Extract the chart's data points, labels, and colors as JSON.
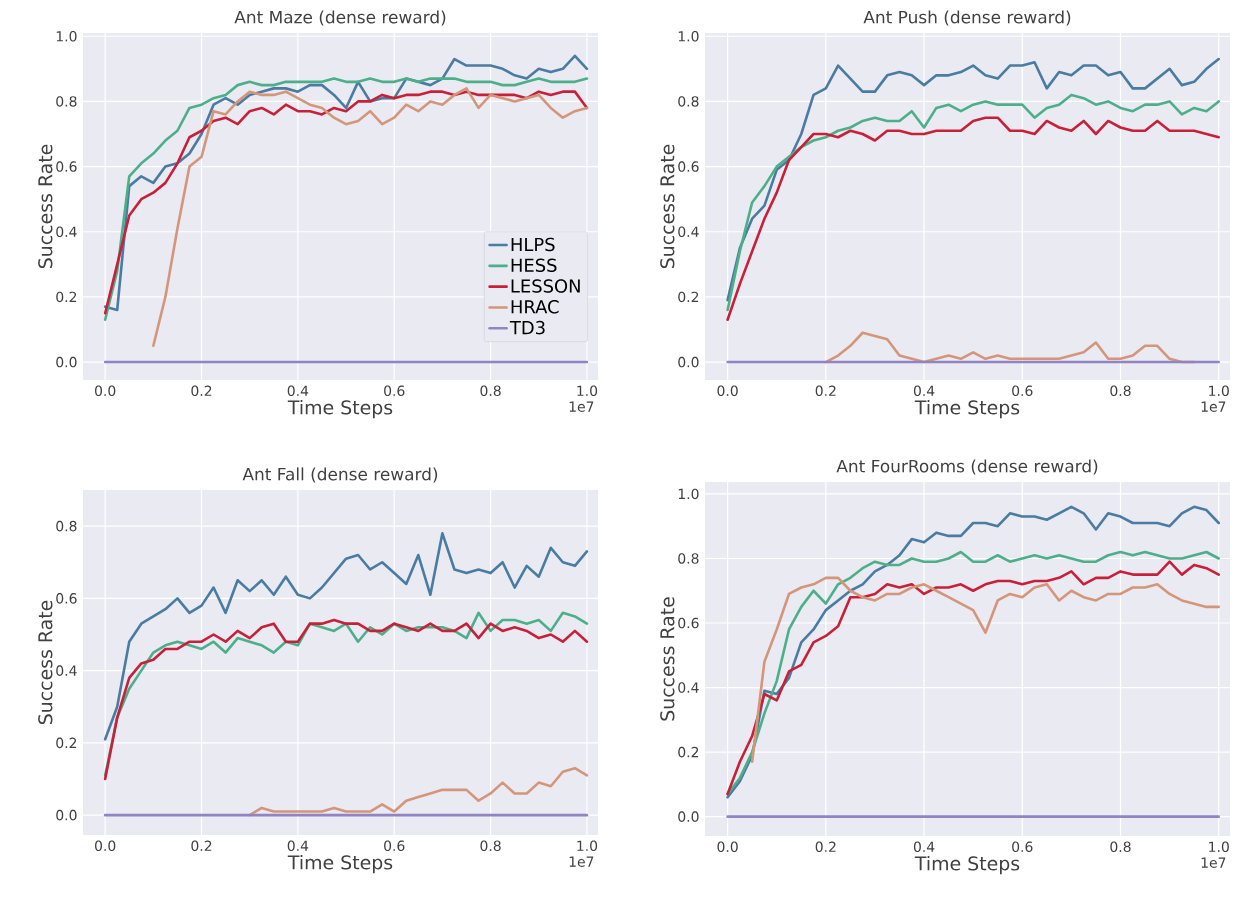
{
  "chart_data": [
    {
      "type": "line",
      "title": "Ant Maze (dense reward)",
      "xlabel": "Time Steps",
      "ylabel": "Success Rate",
      "annotations": [
        "1e7"
      ],
      "grid": true,
      "legend": "bottom right",
      "marker": "none",
      "line_style": "solid",
      "xlim": [
        -0.046,
        1.023
      ],
      "ylim": [
        -0.055,
        1.01
      ],
      "xticks": [
        {
          "value": 0,
          "label": "0.0"
        },
        {
          "value": 0.2,
          "label": "0.2"
        },
        {
          "value": 0.4,
          "label": "0.4"
        },
        {
          "value": 0.6,
          "label": "0.6"
        },
        {
          "value": 0.8,
          "label": "0.8"
        },
        {
          "value": 1,
          "label": "1.0"
        }
      ],
      "yticks": [
        {
          "value": 0,
          "label": "0.0"
        },
        {
          "value": 0.2,
          "label": "0.2"
        },
        {
          "value": 0.4,
          "label": "0.4"
        },
        {
          "value": 0.6,
          "label": "0.6"
        },
        {
          "value": 0.8,
          "label": "0.8"
        },
        {
          "value": 1,
          "label": "1.0"
        }
      ],
      "x": [
        0,
        0.025,
        0.05,
        0.075,
        0.1,
        0.125,
        0.15,
        0.175,
        0.2,
        0.225,
        0.25,
        0.275,
        0.3,
        0.325,
        0.35,
        0.375,
        0.4,
        0.425,
        0.45,
        0.475,
        0.5,
        0.525,
        0.55,
        0.575,
        0.6,
        0.625,
        0.65,
        0.675,
        0.7,
        0.725,
        0.75,
        0.775,
        0.8,
        0.825,
        0.85,
        0.875,
        0.9,
        0.925,
        0.95,
        0.975,
        1
      ],
      "series": [
        {
          "name": "HLPS",
          "color": "#4a7ba0",
          "values": [
            0.17,
            0.16,
            0.54,
            0.57,
            0.55,
            0.6,
            0.61,
            0.64,
            0.7,
            0.79,
            0.81,
            0.79,
            0.82,
            0.83,
            0.84,
            0.84,
            0.83,
            0.85,
            0.85,
            0.82,
            0.78,
            0.86,
            0.8,
            0.81,
            0.81,
            0.87,
            0.86,
            0.85,
            0.87,
            0.93,
            0.91,
            0.91,
            0.91,
            0.9,
            0.88,
            0.87,
            0.9,
            0.89,
            0.9,
            0.94,
            0.9
          ]
        },
        {
          "name": "HESS",
          "color": "#4daf8a",
          "values": [
            0.13,
            0.28,
            0.57,
            0.61,
            0.64,
            0.68,
            0.71,
            0.78,
            0.79,
            0.81,
            0.82,
            0.85,
            0.86,
            0.85,
            0.85,
            0.86,
            0.86,
            0.86,
            0.86,
            0.87,
            0.86,
            0.86,
            0.87,
            0.86,
            0.86,
            0.87,
            0.86,
            0.87,
            0.87,
            0.87,
            0.86,
            0.86,
            0.86,
            0.85,
            0.85,
            0.86,
            0.87,
            0.86,
            0.86,
            0.86,
            0.87
          ]
        },
        {
          "name": "LESSON",
          "color": "#c8203a",
          "values": [
            0.15,
            0.3,
            0.45,
            0.5,
            0.52,
            0.55,
            0.61,
            0.69,
            0.71,
            0.74,
            0.75,
            0.73,
            0.77,
            0.78,
            0.76,
            0.79,
            0.77,
            0.77,
            0.76,
            0.78,
            0.77,
            0.8,
            0.8,
            0.82,
            0.81,
            0.82,
            0.82,
            0.83,
            0.83,
            0.82,
            0.83,
            0.82,
            0.82,
            0.82,
            0.82,
            0.81,
            0.83,
            0.82,
            0.83,
            0.83,
            0.78
          ]
        },
        {
          "name": "HRAC",
          "color": "#d4967a",
          "values": [
            null,
            null,
            null,
            null,
            0.05,
            0.2,
            0.41,
            0.6,
            0.63,
            0.77,
            0.76,
            0.8,
            0.83,
            0.82,
            0.82,
            0.83,
            0.81,
            0.79,
            0.78,
            0.75,
            0.73,
            0.74,
            0.77,
            0.73,
            0.75,
            0.79,
            0.77,
            0.8,
            0.79,
            0.82,
            0.84,
            0.78,
            0.82,
            0.81,
            0.8,
            0.81,
            0.82,
            0.78,
            0.75,
            0.77,
            0.78
          ]
        },
        {
          "name": "TD3",
          "color": "#9183c4",
          "values": [
            0,
            0,
            0,
            0,
            0,
            0,
            0,
            0,
            0,
            0,
            0,
            0,
            0,
            0,
            0,
            0,
            0,
            0,
            0,
            0,
            0,
            0,
            0,
            0,
            0,
            0,
            0,
            0,
            0,
            0,
            0,
            0,
            0,
            0,
            0,
            0,
            0,
            0,
            0,
            0,
            0
          ]
        }
      ]
    },
    {
      "type": "line",
      "title": "Ant Push (dense reward)",
      "xlabel": "Time Steps",
      "ylabel": "Success Rate",
      "annotations": [
        "1e7"
      ],
      "grid": true,
      "marker": "none",
      "line_style": "solid",
      "xlim": [
        -0.046,
        1.023
      ],
      "ylim": [
        -0.055,
        1.01
      ],
      "xticks": [
        {
          "value": 0,
          "label": "0.0"
        },
        {
          "value": 0.2,
          "label": "0.2"
        },
        {
          "value": 0.4,
          "label": "0.4"
        },
        {
          "value": 0.6,
          "label": "0.6"
        },
        {
          "value": 0.8,
          "label": "0.8"
        },
        {
          "value": 1,
          "label": "1.0"
        }
      ],
      "yticks": [
        {
          "value": 0,
          "label": "0.0"
        },
        {
          "value": 0.2,
          "label": "0.2"
        },
        {
          "value": 0.4,
          "label": "0.4"
        },
        {
          "value": 0.6,
          "label": "0.6"
        },
        {
          "value": 0.8,
          "label": "0.8"
        },
        {
          "value": 1,
          "label": "1.0"
        }
      ],
      "x": [
        0,
        0.025,
        0.05,
        0.075,
        0.1,
        0.125,
        0.15,
        0.175,
        0.2,
        0.225,
        0.25,
        0.275,
        0.3,
        0.325,
        0.35,
        0.375,
        0.4,
        0.425,
        0.45,
        0.475,
        0.5,
        0.525,
        0.55,
        0.575,
        0.6,
        0.625,
        0.65,
        0.675,
        0.7,
        0.725,
        0.75,
        0.775,
        0.8,
        0.825,
        0.85,
        0.875,
        0.9,
        0.925,
        0.95,
        0.975,
        1
      ],
      "series": [
        {
          "color": "#4a7ba0",
          "values": [
            0.19,
            0.35,
            0.44,
            0.48,
            0.59,
            0.62,
            0.7,
            0.82,
            0.84,
            0.91,
            0.87,
            0.83,
            0.83,
            0.88,
            0.89,
            0.88,
            0.85,
            0.88,
            0.88,
            0.89,
            0.91,
            0.88,
            0.87,
            0.91,
            0.91,
            0.92,
            0.84,
            0.89,
            0.88,
            0.91,
            0.91,
            0.88,
            0.89,
            0.84,
            0.84,
            0.87,
            0.9,
            0.85,
            0.86,
            0.9,
            0.93
          ]
        },
        {
          "color": "#4daf8a",
          "values": [
            0.16,
            0.34,
            0.49,
            0.54,
            0.6,
            0.63,
            0.66,
            0.68,
            0.69,
            0.71,
            0.72,
            0.74,
            0.75,
            0.74,
            0.74,
            0.77,
            0.72,
            0.78,
            0.79,
            0.77,
            0.79,
            0.8,
            0.79,
            0.79,
            0.79,
            0.75,
            0.78,
            0.79,
            0.82,
            0.81,
            0.79,
            0.8,
            0.78,
            0.77,
            0.79,
            0.79,
            0.8,
            0.76,
            0.78,
            0.77,
            0.8
          ]
        },
        {
          "color": "#c8203a",
          "values": [
            0.13,
            0.24,
            0.34,
            0.44,
            0.52,
            0.62,
            0.66,
            0.7,
            0.7,
            0.69,
            0.71,
            0.7,
            0.68,
            0.71,
            0.71,
            0.7,
            0.7,
            0.71,
            0.71,
            0.71,
            0.74,
            0.75,
            0.75,
            0.71,
            0.71,
            0.7,
            0.74,
            0.72,
            0.71,
            0.74,
            0.7,
            0.74,
            0.72,
            0.71,
            0.71,
            0.74,
            0.71,
            0.71,
            0.71,
            0.7,
            0.69
          ]
        },
        {
          "color": "#d4967a",
          "values": [
            null,
            null,
            null,
            null,
            null,
            null,
            null,
            null,
            0,
            0.02,
            0.05,
            0.09,
            0.08,
            0.07,
            0.02,
            0.01,
            0,
            0.01,
            0.02,
            0.01,
            0.03,
            0.01,
            0.02,
            0.01,
            0.01,
            0.01,
            0.01,
            0.01,
            0.02,
            0.03,
            0.06,
            0.01,
            0.01,
            0.02,
            0.05,
            0.05,
            0.01,
            0,
            0,
            null,
            null
          ]
        },
        {
          "color": "#9183c4",
          "values": [
            0,
            0,
            0,
            0,
            0,
            0,
            0,
            0,
            0,
            0,
            0,
            0,
            0,
            0,
            0,
            0,
            0,
            0,
            0,
            0,
            0,
            0,
            0,
            0,
            0,
            0,
            0,
            0,
            0,
            0,
            0,
            0,
            0,
            0,
            0,
            0,
            0,
            0,
            0,
            0,
            0
          ]
        }
      ]
    },
    {
      "type": "line",
      "title": "Ant Fall (dense reward)",
      "xlabel": "Time Steps",
      "ylabel": "Success Rate",
      "annotations": [
        "1e7"
      ],
      "grid": true,
      "marker": "none",
      "line_style": "solid",
      "xlim": [
        -0.046,
        1.023
      ],
      "ylim": [
        -0.055,
        0.9
      ],
      "xticks": [
        {
          "value": 0,
          "label": "0.0"
        },
        {
          "value": 0.2,
          "label": "0.2"
        },
        {
          "value": 0.4,
          "label": "0.4"
        },
        {
          "value": 0.6,
          "label": "0.6"
        },
        {
          "value": 0.8,
          "label": "0.8"
        },
        {
          "value": 1,
          "label": "1.0"
        }
      ],
      "yticks": [
        {
          "value": 0,
          "label": "0.0"
        },
        {
          "value": 0.2,
          "label": "0.2"
        },
        {
          "value": 0.4,
          "label": "0.4"
        },
        {
          "value": 0.6,
          "label": "0.6"
        },
        {
          "value": 0.8,
          "label": "0.8"
        }
      ],
      "x": [
        0,
        0.025,
        0.05,
        0.075,
        0.1,
        0.125,
        0.15,
        0.175,
        0.2,
        0.225,
        0.25,
        0.275,
        0.3,
        0.325,
        0.35,
        0.375,
        0.4,
        0.425,
        0.45,
        0.475,
        0.5,
        0.525,
        0.55,
        0.575,
        0.6,
        0.625,
        0.65,
        0.675,
        0.7,
        0.725,
        0.75,
        0.775,
        0.8,
        0.825,
        0.85,
        0.875,
        0.9,
        0.925,
        0.95,
        0.975,
        1
      ],
      "series": [
        {
          "color": "#4a7ba0",
          "values": [
            0.21,
            0.3,
            0.48,
            0.53,
            0.55,
            0.57,
            0.6,
            0.56,
            0.58,
            0.63,
            0.56,
            0.65,
            0.62,
            0.65,
            0.61,
            0.66,
            0.61,
            0.6,
            0.63,
            0.67,
            0.71,
            0.72,
            0.68,
            0.7,
            0.67,
            0.64,
            0.72,
            0.61,
            0.78,
            0.68,
            0.67,
            0.68,
            0.67,
            0.7,
            0.63,
            0.69,
            0.66,
            0.74,
            0.7,
            0.69,
            0.73
          ]
        },
        {
          "color": "#4daf8a",
          "values": [
            0.11,
            0.27,
            0.35,
            0.4,
            0.45,
            0.47,
            0.48,
            0.47,
            0.46,
            0.48,
            0.45,
            0.49,
            0.48,
            0.47,
            0.45,
            0.48,
            0.47,
            0.53,
            0.52,
            0.51,
            0.53,
            0.48,
            0.52,
            0.5,
            0.53,
            0.51,
            0.52,
            0.52,
            0.52,
            0.51,
            0.49,
            0.56,
            0.51,
            0.54,
            0.54,
            0.53,
            0.54,
            0.51,
            0.56,
            0.55,
            0.53
          ]
        },
        {
          "color": "#c8203a",
          "values": [
            0.1,
            0.27,
            0.38,
            0.42,
            0.43,
            0.46,
            0.46,
            0.48,
            0.48,
            0.5,
            0.48,
            0.51,
            0.49,
            0.52,
            0.53,
            0.48,
            0.48,
            0.53,
            0.53,
            0.54,
            0.53,
            0.53,
            0.51,
            0.51,
            0.53,
            0.52,
            0.51,
            0.53,
            0.51,
            0.51,
            0.53,
            0.49,
            0.53,
            0.51,
            0.52,
            0.51,
            0.49,
            0.5,
            0.48,
            0.51,
            0.48
          ]
        },
        {
          "color": "#d4967a",
          "values": [
            null,
            null,
            null,
            null,
            null,
            null,
            null,
            null,
            null,
            null,
            null,
            null,
            0,
            0.02,
            0.01,
            0.01,
            0.01,
            0.01,
            0.01,
            0.02,
            0.01,
            0.01,
            0.01,
            0.03,
            0.01,
            0.04,
            0.05,
            0.06,
            0.07,
            0.07,
            0.07,
            0.04,
            0.06,
            0.09,
            0.06,
            0.06,
            0.09,
            0.08,
            0.12,
            0.13,
            0.11
          ]
        },
        {
          "color": "#9183c4",
          "values": [
            0,
            0,
            0,
            0,
            0,
            0,
            0,
            0,
            0,
            0,
            0,
            0,
            0,
            0,
            0,
            0,
            0,
            0,
            0,
            0,
            0,
            0,
            0,
            0,
            0,
            0,
            0,
            0,
            0,
            0,
            0,
            0,
            0,
            0,
            0,
            0,
            0,
            0,
            0,
            0,
            0
          ]
        }
      ]
    },
    {
      "type": "line",
      "title": "Ant FourRooms (dense reward)",
      "xlabel": "Time Steps",
      "ylabel": "Success Rate",
      "annotations": [
        "1e7"
      ],
      "grid": true,
      "marker": "none",
      "line_style": "solid",
      "xlim": [
        -0.046,
        1.023
      ],
      "ylim": [
        -0.06,
        1.037
      ],
      "xticks": [
        {
          "value": 0,
          "label": "0.0"
        },
        {
          "value": 0.2,
          "label": "0.2"
        },
        {
          "value": 0.4,
          "label": "0.4"
        },
        {
          "value": 0.6,
          "label": "0.6"
        },
        {
          "value": 0.8,
          "label": "0.8"
        },
        {
          "value": 1,
          "label": "1.0"
        }
      ],
      "yticks": [
        {
          "value": 0,
          "label": "0.0"
        },
        {
          "value": 0.2,
          "label": "0.2"
        },
        {
          "value": 0.4,
          "label": "0.4"
        },
        {
          "value": 0.6,
          "label": "0.6"
        },
        {
          "value": 0.8,
          "label": "0.8"
        },
        {
          "value": 1,
          "label": "1.0"
        }
      ],
      "x": [
        0,
        0.025,
        0.05,
        0.075,
        0.1,
        0.125,
        0.15,
        0.175,
        0.2,
        0.225,
        0.25,
        0.275,
        0.3,
        0.325,
        0.35,
        0.375,
        0.4,
        0.425,
        0.45,
        0.475,
        0.5,
        0.525,
        0.55,
        0.575,
        0.6,
        0.625,
        0.65,
        0.675,
        0.7,
        0.725,
        0.75,
        0.775,
        0.8,
        0.825,
        0.85,
        0.875,
        0.9,
        0.925,
        0.95,
        0.975,
        1
      ],
      "series": [
        {
          "color": "#4a7ba0",
          "values": [
            0.06,
            0.11,
            0.19,
            0.39,
            0.38,
            0.43,
            0.54,
            0.58,
            0.64,
            0.67,
            0.7,
            0.72,
            0.76,
            0.78,
            0.81,
            0.86,
            0.85,
            0.88,
            0.87,
            0.87,
            0.91,
            0.91,
            0.9,
            0.94,
            0.93,
            0.93,
            0.92,
            0.94,
            0.96,
            0.94,
            0.89,
            0.94,
            0.93,
            0.91,
            0.91,
            0.91,
            0.9,
            0.94,
            0.96,
            0.95,
            0.91
          ]
        },
        {
          "color": "#4daf8a",
          "values": [
            0.07,
            0.12,
            0.2,
            0.32,
            0.42,
            0.58,
            0.65,
            0.7,
            0.66,
            0.72,
            0.74,
            0.77,
            0.79,
            0.78,
            0.78,
            0.8,
            0.79,
            0.79,
            0.8,
            0.82,
            0.79,
            0.79,
            0.81,
            0.79,
            0.8,
            0.81,
            0.8,
            0.81,
            0.8,
            0.79,
            0.79,
            0.81,
            0.82,
            0.81,
            0.82,
            0.81,
            0.8,
            0.8,
            0.81,
            0.82,
            0.8
          ]
        },
        {
          "color": "#c8203a",
          "values": [
            0.07,
            0.17,
            0.25,
            0.38,
            0.36,
            0.45,
            0.47,
            0.54,
            0.56,
            0.59,
            0.68,
            0.68,
            0.69,
            0.72,
            0.71,
            0.72,
            0.69,
            0.71,
            0.71,
            0.72,
            0.7,
            0.72,
            0.73,
            0.73,
            0.72,
            0.73,
            0.73,
            0.74,
            0.76,
            0.72,
            0.74,
            0.74,
            0.76,
            0.75,
            0.75,
            0.75,
            0.79,
            0.75,
            0.78,
            0.77,
            0.75
          ]
        },
        {
          "color": "#d4967a",
          "values": [
            null,
            null,
            0.17,
            0.48,
            0.58,
            0.69,
            0.71,
            0.72,
            0.74,
            0.74,
            0.7,
            0.68,
            0.67,
            0.69,
            0.69,
            0.71,
            0.72,
            0.7,
            0.68,
            0.66,
            0.64,
            0.57,
            0.67,
            0.69,
            0.68,
            0.71,
            0.72,
            0.67,
            0.7,
            0.68,
            0.67,
            0.69,
            0.69,
            0.71,
            0.71,
            0.72,
            0.69,
            0.67,
            0.66,
            0.65,
            0.65
          ]
        },
        {
          "color": "#9183c4",
          "values": [
            0,
            0,
            0,
            0,
            0,
            0,
            0,
            0,
            0,
            0,
            0,
            0,
            0,
            0,
            0,
            0,
            0,
            0,
            0,
            0,
            0,
            0,
            0,
            0,
            0,
            0,
            0,
            0,
            0,
            0,
            0,
            0,
            0,
            0,
            0,
            0,
            0,
            0,
            0,
            0,
            0
          ]
        }
      ]
    }
  ]
}
